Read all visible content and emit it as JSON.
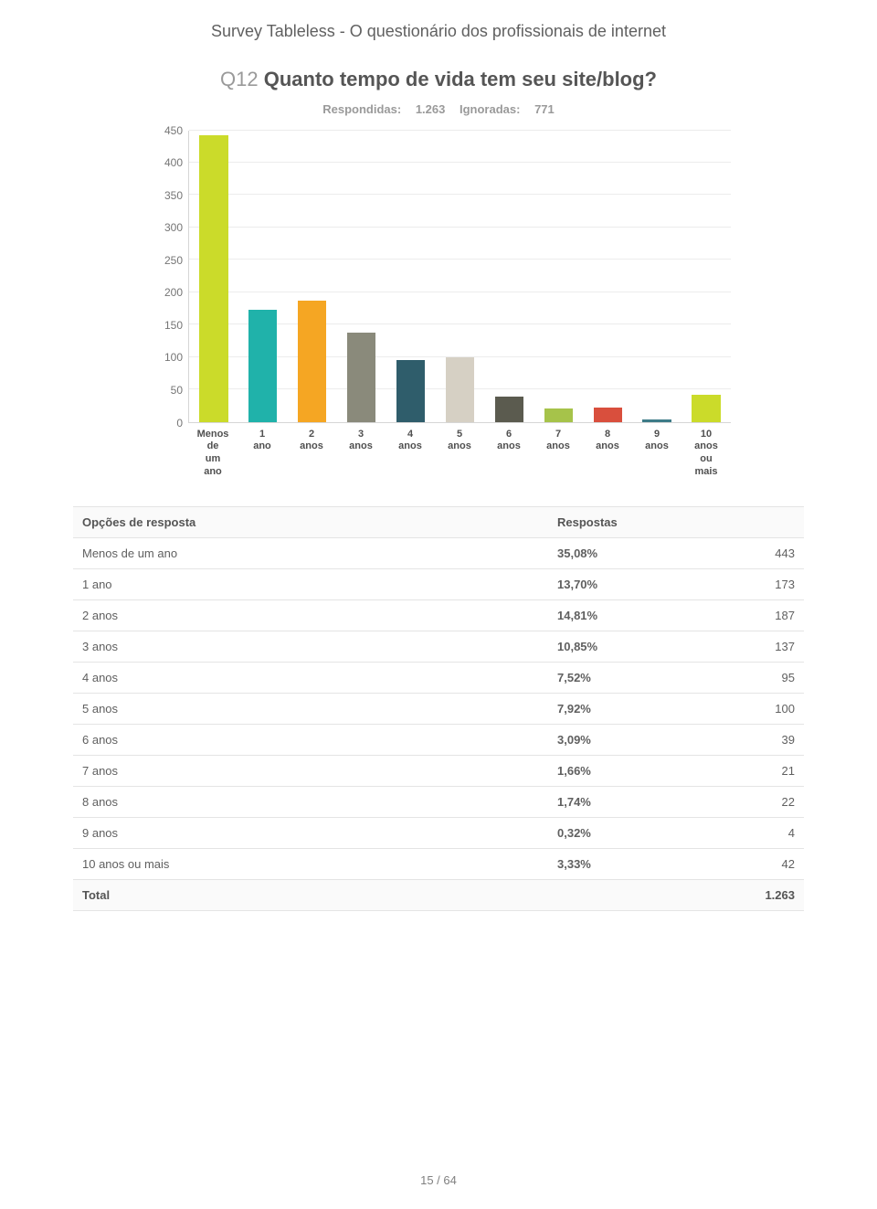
{
  "survey_title": "Survey Tableless - O questionário dos profissionais de internet",
  "question": {
    "number": "Q12",
    "text": "Quanto tempo de vida tem seu site/blog?"
  },
  "counts": {
    "answered_label": "Respondidas:",
    "answered_value": "1.263",
    "skipped_label": "Ignoradas:",
    "skipped_value": "771"
  },
  "chart": {
    "type": "bar",
    "ylim": [
      0,
      450
    ],
    "ytick_step": 50,
    "yticks": [
      450,
      400,
      350,
      300,
      250,
      200,
      150,
      100,
      50,
      0
    ],
    "grid_color": "#ececec",
    "axis_color": "#d6d6d6",
    "background_color": "#ffffff",
    "bar_width_pct": 58,
    "label_fontsize": 11,
    "tick_fontsize": 12,
    "categories": [
      "Menos\nde\num\nano",
      "1\nano",
      "2\nanos",
      "3\nanos",
      "4\nanos",
      "5\nanos",
      "6\nanos",
      "7\nanos",
      "8\nanos",
      "9\nanos",
      "10\nanos\nou\nmais"
    ],
    "values": [
      443,
      173,
      187,
      137,
      95,
      100,
      39,
      21,
      22,
      4,
      42
    ],
    "bar_colors": [
      "#cbdb2a",
      "#20b2aa",
      "#f5a623",
      "#8a8a7b",
      "#2f5d6b",
      "#d6d0c4",
      "#5b5b4f",
      "#a6c34a",
      "#d94f3d",
      "#3d7b88",
      "#cbdb2a"
    ]
  },
  "table": {
    "header_option": "Opções de resposta",
    "header_responses": "Respostas",
    "rows": [
      {
        "label": "Menos de um ano",
        "pct": "35,08%",
        "count": "443"
      },
      {
        "label": "1 ano",
        "pct": "13,70%",
        "count": "173"
      },
      {
        "label": "2 anos",
        "pct": "14,81%",
        "count": "187"
      },
      {
        "label": "3 anos",
        "pct": "10,85%",
        "count": "137"
      },
      {
        "label": "4 anos",
        "pct": "7,52%",
        "count": "95"
      },
      {
        "label": "5 anos",
        "pct": "7,92%",
        "count": "100"
      },
      {
        "label": "6 anos",
        "pct": "3,09%",
        "count": "39"
      },
      {
        "label": "7 anos",
        "pct": "1,66%",
        "count": "21"
      },
      {
        "label": "8 anos",
        "pct": "1,74%",
        "count": "22"
      },
      {
        "label": "9 anos",
        "pct": "0,32%",
        "count": "4"
      },
      {
        "label": "10 anos ou mais",
        "pct": "3,33%",
        "count": "42"
      }
    ],
    "total_label": "Total",
    "total_value": "1.263"
  },
  "pager": "15 / 64"
}
